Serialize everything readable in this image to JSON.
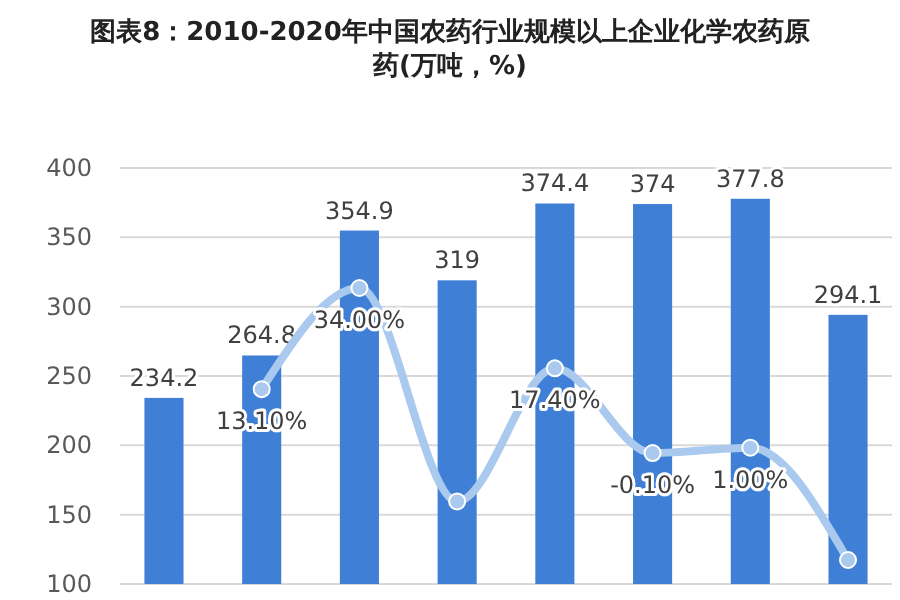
{
  "chart_data": {
    "type": "bar",
    "title": "图表8：2010-2020年中国农药行业规模以上企业化学农药原药(万吨，%)",
    "categories": [
      null,
      null,
      null,
      null,
      null,
      null,
      null,
      null
    ],
    "series": [
      {
        "color": "#3f7fd6",
        "values": [
          234.2,
          264.8,
          354.9,
          319,
          374.4,
          374,
          377.8,
          294.1
        ],
        "data_labels": true
      },
      {
        "type": "line",
        "axis": "y2",
        "color": "#a9c9ee",
        "marker": "circle",
        "values": [
          null,
          13.1,
          34.0,
          -10.1,
          17.4,
          -0.1,
          1.0,
          -22.2
        ],
        "value_labels": [
          null,
          "13.10%",
          "34.00%",
          null,
          "17.40%",
          "-0.10%",
          "1.00%",
          null
        ]
      }
    ],
    "ylim": [
      100,
      400
    ],
    "yticks": [
      100,
      150,
      200,
      250,
      300,
      350,
      400
    ],
    "grid": "y",
    "tick_labels": "y",
    "legend": false
  }
}
